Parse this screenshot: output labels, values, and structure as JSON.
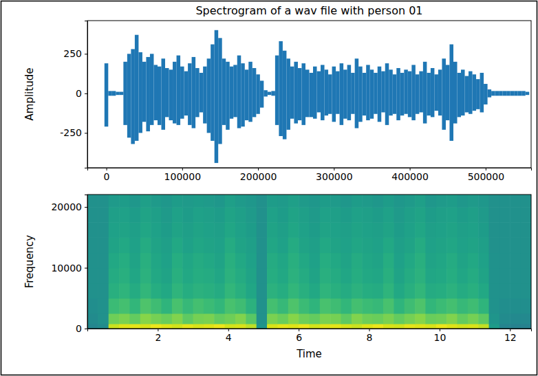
{
  "chart_data": [
    {
      "type": "line",
      "title": "Spectrogram of a wav file with person 01",
      "y_label": "Amplitude",
      "x": [
        0,
        5000,
        10000,
        15000,
        20000,
        25000,
        30000,
        35000,
        40000,
        45000,
        50000,
        55000,
        60000,
        65000,
        70000,
        75000,
        80000,
        85000,
        90000,
        95000,
        100000,
        105000,
        110000,
        115000,
        120000,
        125000,
        130000,
        135000,
        140000,
        145000,
        150000,
        155000,
        160000,
        165000,
        170000,
        175000,
        180000,
        185000,
        190000,
        195000,
        200000,
        205000,
        210000,
        215000,
        220000,
        225000,
        230000,
        235000,
        240000,
        245000,
        250000,
        255000,
        260000,
        265000,
        270000,
        275000,
        280000,
        285000,
        290000,
        295000,
        300000,
        305000,
        310000,
        315000,
        320000,
        325000,
        330000,
        335000,
        340000,
        345000,
        350000,
        355000,
        360000,
        365000,
        370000,
        375000,
        380000,
        385000,
        390000,
        395000,
        400000,
        405000,
        410000,
        415000,
        420000,
        425000,
        430000,
        435000,
        440000,
        445000,
        450000,
        455000,
        460000,
        465000,
        470000,
        475000,
        480000,
        485000,
        490000,
        495000,
        500000,
        505000,
        510000,
        515000,
        520000,
        525000,
        530000,
        535000,
        540000,
        545000,
        550000,
        555000
      ],
      "series": [
        {
          "color": "#1f77b4",
          "values": [
            190,
            15,
            15,
            10,
            10,
            200,
            250,
            280,
            370,
            260,
            200,
            230,
            250,
            180,
            170,
            220,
            160,
            150,
            200,
            240,
            170,
            140,
            190,
            230,
            160,
            130,
            170,
            220,
            310,
            400,
            350,
            220,
            200,
            170,
            180,
            240,
            190,
            150,
            200,
            160,
            120,
            80,
            20,
            10,
            15,
            240,
            330,
            270,
            220,
            170,
            200,
            160,
            190,
            150,
            130,
            170,
            140,
            180,
            150,
            120,
            170,
            140,
            190,
            150,
            180,
            130,
            220,
            170,
            130,
            180,
            150,
            130,
            170,
            140,
            190,
            150,
            120,
            160,
            130,
            150,
            140,
            180,
            120,
            140,
            200,
            130,
            160,
            120,
            150,
            220,
            180,
            310,
            200,
            130,
            150,
            110,
            140,
            120,
            90,
            130,
            60,
            25,
            15,
            15,
            15,
            15,
            15,
            15,
            15,
            15,
            15,
            10
          ]
        },
        {
          "color": "#1f77b4",
          "values": [
            -210,
            -15,
            -15,
            -10,
            -10,
            -200,
            -280,
            -320,
            -300,
            -250,
            -180,
            -240,
            -200,
            -170,
            -200,
            -230,
            -150,
            -170,
            -190,
            -200,
            -160,
            -140,
            -200,
            -220,
            -150,
            -120,
            -190,
            -250,
            -300,
            -440,
            -320,
            -200,
            -230,
            -160,
            -150,
            -220,
            -210,
            -170,
            -180,
            -150,
            -130,
            -90,
            -20,
            -10,
            -15,
            -200,
            -270,
            -290,
            -230,
            -160,
            -190,
            -170,
            -200,
            -150,
            -150,
            -160,
            -120,
            -170,
            -140,
            -130,
            -180,
            -130,
            -200,
            -160,
            -170,
            -130,
            -220,
            -180,
            -140,
            -170,
            -160,
            -130,
            -180,
            -120,
            -200,
            -140,
            -130,
            -170,
            -140,
            -130,
            -150,
            -170,
            -130,
            -120,
            -190,
            -140,
            -150,
            -110,
            -140,
            -230,
            -170,
            -300,
            -190,
            -150,
            -140,
            -120,
            -130,
            -110,
            -100,
            -120,
            -70,
            -25,
            -15,
            -15,
            -15,
            -15,
            -15,
            -15,
            -15,
            -15,
            -15,
            -10
          ]
        }
      ],
      "xlim": [
        -25000,
        560000
      ],
      "ylim": [
        -470,
        460
      ],
      "xticks": [
        0,
        100000,
        200000,
        300000,
        400000,
        500000
      ],
      "yticks": [
        -250,
        0,
        250
      ]
    },
    {
      "type": "heatmap",
      "x_label": "Time",
      "y_label": "Frequency",
      "x_edges": [
        0,
        0.3,
        0.6,
        0.9,
        1.2,
        1.5,
        1.8,
        2.1,
        2.4,
        2.7,
        3,
        3.3,
        3.6,
        3.9,
        4.2,
        4.5,
        4.8,
        5.1,
        5.4,
        5.7,
        6,
        6.3,
        6.6,
        6.9,
        7.2,
        7.5,
        7.8,
        8.1,
        8.4,
        8.7,
        9,
        9.3,
        9.6,
        9.9,
        10.2,
        10.5,
        10.8,
        11.1,
        11.4,
        11.7,
        12,
        12.3,
        12.6
      ],
      "y_edges": [
        0,
        800,
        2500,
        5000,
        7500,
        10000,
        12500,
        15000,
        17500,
        20000,
        22050
      ],
      "cells": [
        [
          46,
          48,
          92,
          95,
          96,
          94,
          97,
          95,
          93,
          96,
          94,
          95,
          97,
          93,
          94,
          90,
          52,
          94,
          96,
          95,
          97,
          93,
          95,
          96,
          94,
          92,
          95,
          97,
          94,
          93,
          96,
          95,
          94,
          97,
          95,
          93,
          94,
          91,
          55,
          45,
          44,
          44
        ],
        [
          48,
          50,
          78,
          80,
          76,
          82,
          79,
          77,
          81,
          75,
          79,
          80,
          76,
          78,
          81,
          74,
          50,
          80,
          77,
          82,
          78,
          76,
          80,
          79,
          75,
          81,
          78,
          77,
          80,
          76,
          79,
          82,
          77,
          78,
          81,
          76,
          79,
          75,
          52,
          48,
          47,
          47
        ],
        [
          49,
          50,
          68,
          70,
          66,
          72,
          69,
          65,
          71,
          67,
          70,
          68,
          66,
          71,
          69,
          64,
          50,
          70,
          67,
          72,
          68,
          65,
          71,
          69,
          66,
          70,
          68,
          67,
          71,
          65,
          69,
          72,
          66,
          68,
          70,
          67,
          69,
          65,
          51,
          49,
          49,
          49
        ],
        [
          50,
          50,
          63,
          65,
          61,
          66,
          62,
          60,
          65,
          62,
          64,
          63,
          61,
          66,
          63,
          59,
          50,
          64,
          62,
          66,
          63,
          60,
          65,
          63,
          61,
          64,
          62,
          61,
          65,
          60,
          63,
          66,
          61,
          62,
          64,
          61,
          63,
          60,
          51,
          50,
          50,
          50
        ],
        [
          50,
          50,
          61,
          63,
          59,
          64,
          60,
          58,
          63,
          60,
          62,
          61,
          59,
          64,
          61,
          58,
          50,
          62,
          60,
          64,
          61,
          58,
          63,
          61,
          59,
          62,
          60,
          59,
          63,
          58,
          61,
          64,
          59,
          60,
          62,
          59,
          61,
          58,
          51,
          50,
          50,
          50
        ],
        [
          50,
          50,
          60,
          62,
          58,
          63,
          59,
          57,
          62,
          59,
          61,
          60,
          58,
          63,
          60,
          57,
          50,
          61,
          59,
          63,
          60,
          57,
          62,
          60,
          58,
          61,
          59,
          58,
          62,
          57,
          60,
          63,
          58,
          59,
          61,
          58,
          60,
          57,
          51,
          50,
          50,
          50
        ],
        [
          50,
          50,
          58,
          60,
          57,
          61,
          58,
          56,
          60,
          57,
          59,
          58,
          57,
          61,
          58,
          56,
          50,
          59,
          57,
          61,
          58,
          56,
          60,
          58,
          57,
          59,
          58,
          57,
          60,
          56,
          58,
          61,
          57,
          58,
          59,
          57,
          58,
          56,
          50,
          50,
          50,
          50
        ],
        [
          50,
          50,
          57,
          58,
          56,
          59,
          57,
          55,
          58,
          56,
          58,
          57,
          56,
          59,
          57,
          55,
          50,
          58,
          56,
          59,
          57,
          55,
          58,
          57,
          56,
          58,
          57,
          56,
          58,
          55,
          57,
          59,
          56,
          57,
          58,
          56,
          57,
          55,
          50,
          50,
          50,
          50
        ],
        [
          50,
          50,
          56,
          57,
          55,
          58,
          56,
          54,
          57,
          55,
          57,
          56,
          55,
          58,
          56,
          54,
          50,
          57,
          55,
          58,
          56,
          54,
          57,
          56,
          55,
          57,
          56,
          55,
          57,
          54,
          56,
          58,
          55,
          56,
          57,
          55,
          56,
          54,
          50,
          50,
          50,
          50
        ],
        [
          50,
          50,
          54,
          55,
          53,
          56,
          54,
          53,
          55,
          54,
          55,
          54,
          53,
          56,
          54,
          53,
          50,
          55,
          54,
          56,
          54,
          53,
          55,
          54,
          53,
          55,
          54,
          53,
          55,
          53,
          54,
          56,
          53,
          54,
          55,
          53,
          54,
          53,
          50,
          50,
          50,
          50
        ]
      ],
      "zlim": [
        0,
        100
      ],
      "xlim": [
        0,
        12.6
      ],
      "ylim": [
        0,
        22050
      ],
      "xticks": [
        2,
        4,
        6,
        8,
        10,
        12
      ],
      "yticks": [
        0,
        10000,
        20000
      ]
    }
  ]
}
